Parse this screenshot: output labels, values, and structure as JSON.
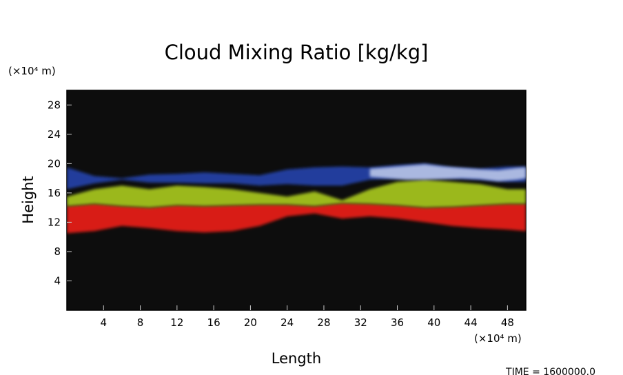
{
  "chart_data": {
    "type": "heatmap",
    "title": "Cloud Mixing Ratio [kg/kg]",
    "xlabel": "Length",
    "ylabel": "Height",
    "x_unit": "(×10⁴ m)",
    "y_unit": "(×10⁴ m)",
    "x_ticks": [
      4,
      8,
      12,
      16,
      20,
      24,
      28,
      32,
      36,
      40,
      44,
      48
    ],
    "y_ticks": [
      4,
      8,
      12,
      16,
      20,
      24,
      28
    ],
    "xlim": [
      0,
      50
    ],
    "ylim": [
      0,
      30
    ],
    "grid": false,
    "background_color": "#0d0d0d",
    "footer": "TIME = 1600000.0",
    "layers": [
      {
        "color": "#d81a12",
        "x": [
          0,
          3,
          6,
          9,
          12,
          15,
          18,
          21,
          24,
          27,
          30,
          33,
          36,
          39,
          42,
          45,
          48,
          50
        ],
        "bottom": [
          10.5,
          10.8,
          11.5,
          11.2,
          10.8,
          10.6,
          10.8,
          11.5,
          12.8,
          13.2,
          12.5,
          12.8,
          12.5,
          12,
          11.5,
          11.2,
          11.0,
          10.8
        ],
        "top": [
          14.2,
          14.5,
          14.2,
          14.0,
          14.3,
          14.2,
          14.3,
          14.4,
          14.4,
          14.2,
          14.6,
          14.5,
          14.3,
          14.0,
          14.1,
          14.3,
          14.5,
          14.5
        ]
      },
      {
        "color": "#9bb81e",
        "x": [
          0,
          3,
          6,
          9,
          12,
          15,
          18,
          21,
          24,
          27,
          30,
          33,
          36,
          39,
          42,
          45,
          48,
          50
        ],
        "bottom": [
          14.2,
          14.5,
          14.2,
          14.0,
          14.3,
          14.2,
          14.3,
          14.4,
          14.4,
          14.2,
          14.6,
          14.5,
          14.3,
          14.0,
          14.1,
          14.3,
          14.5,
          14.5
        ],
        "top": [
          15.5,
          16.5,
          17.0,
          16.5,
          17.0,
          16.8,
          16.5,
          16.0,
          15.5,
          16.2,
          15.0,
          16.5,
          17.5,
          17.8,
          17.5,
          17.2,
          16.5,
          16.5
        ]
      },
      {
        "color": "#223c9c",
        "x": [
          0,
          3,
          6,
          9,
          12,
          15,
          18,
          21,
          24,
          27,
          30,
          33,
          36,
          39,
          42,
          45,
          48,
          50
        ],
        "bottom": [
          16.5,
          17.3,
          17.8,
          17.4,
          17.4,
          17.3,
          17.3,
          17.0,
          17.2,
          17.0,
          17.0,
          17.8,
          18.0,
          18.2,
          18.0,
          17.8,
          17.5,
          17.5
        ],
        "top": [
          19.5,
          18.3,
          18.0,
          18.5,
          18.6,
          18.8,
          18.6,
          18.4,
          19.2,
          19.5,
          19.6,
          19.5,
          19.8,
          20.0,
          19.5,
          19.3,
          19.6,
          19.6
        ]
      },
      {
        "color": "#aab8e0",
        "x": [
          33,
          35,
          37,
          39,
          41,
          43,
          45,
          47,
          49,
          50
        ],
        "bottom": [
          18.2,
          18.0,
          17.8,
          17.8,
          17.9,
          18.0,
          17.9,
          17.6,
          17.8,
          18.0
        ],
        "top": [
          19.3,
          19.5,
          19.7,
          19.9,
          19.6,
          19.4,
          19.2,
          19.1,
          19.4,
          19.5
        ]
      }
    ]
  }
}
